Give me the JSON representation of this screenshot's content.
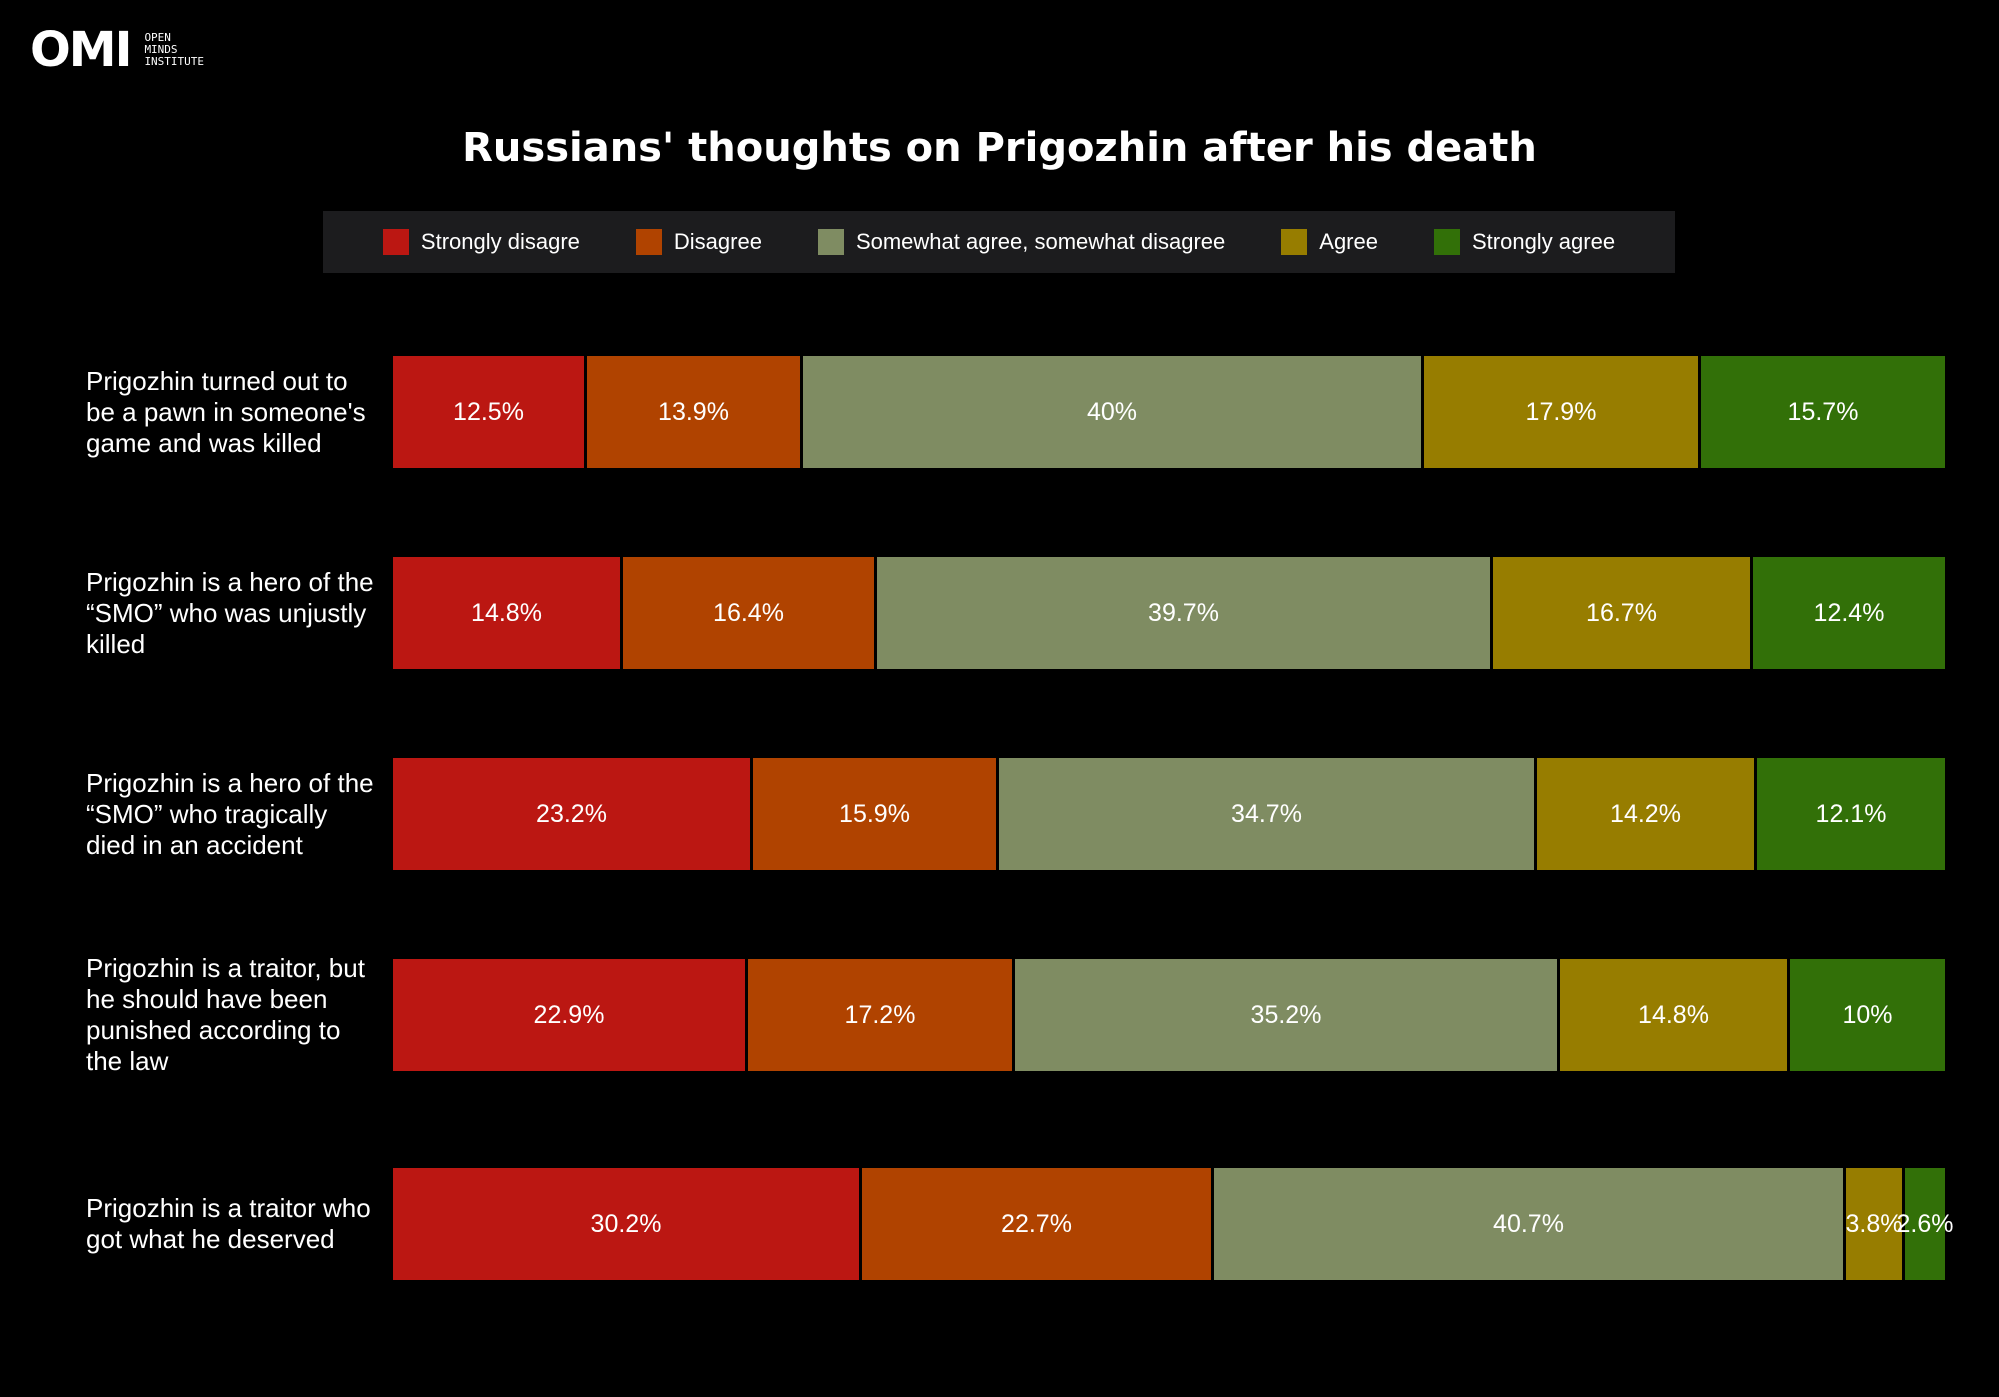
{
  "logo": {
    "mark": "OMI",
    "lines": [
      "OPEN",
      "MINDS",
      "INSTITUTE"
    ]
  },
  "chart_data": {
    "type": "bar",
    "orientation": "horizontal",
    "stacked": true,
    "title": "Russians' thoughts on Prigozhin after his death",
    "legend_position": "top",
    "categories": [
      "Prigozhin turned out to be a pawn in someone's game and was killed",
      "Prigozhin is a hero of the “SMO” who was unjustly killed",
      "Prigozhin is a hero of the “SMO” who tragically died in an accident",
      "Prigozhin is a traitor, but he should have been punished according to the law",
      "Prigozhin is a traitor who got what he deserved"
    ],
    "series": [
      {
        "name": "Strongly disagre",
        "color": "#bb1712",
        "values": [
          12.5,
          14.8,
          23.2,
          22.9,
          30.2
        ],
        "labels": [
          "12.5%",
          "14.8%",
          "23.2%",
          "22.9%",
          "30.2%"
        ]
      },
      {
        "name": "Disagree",
        "color": "#b04300",
        "values": [
          13.9,
          16.4,
          15.9,
          17.2,
          22.7
        ],
        "labels": [
          "13.9%",
          "16.4%",
          "15.9%",
          "17.2%",
          "22.7%"
        ]
      },
      {
        "name": "Somewhat agree, somewhat disagree",
        "color": "#7f8c62",
        "values": [
          40,
          39.7,
          34.7,
          35.2,
          40.7
        ],
        "labels": [
          "40%",
          "39.7%",
          "34.7%",
          "35.2%",
          "40.7%"
        ]
      },
      {
        "name": "Agree",
        "color": "#977d00",
        "values": [
          17.9,
          16.7,
          14.2,
          14.8,
          3.8
        ],
        "labels": [
          "17.9%",
          "16.7%",
          "14.2%",
          "14.8%",
          "3.8%"
        ]
      },
      {
        "name": "Strongly agree",
        "color": "#327008",
        "values": [
          15.7,
          12.4,
          12.1,
          10,
          2.6
        ],
        "labels": [
          "15.7%",
          "12.4%",
          "12.1%",
          "10%",
          "2.6%"
        ]
      }
    ]
  }
}
